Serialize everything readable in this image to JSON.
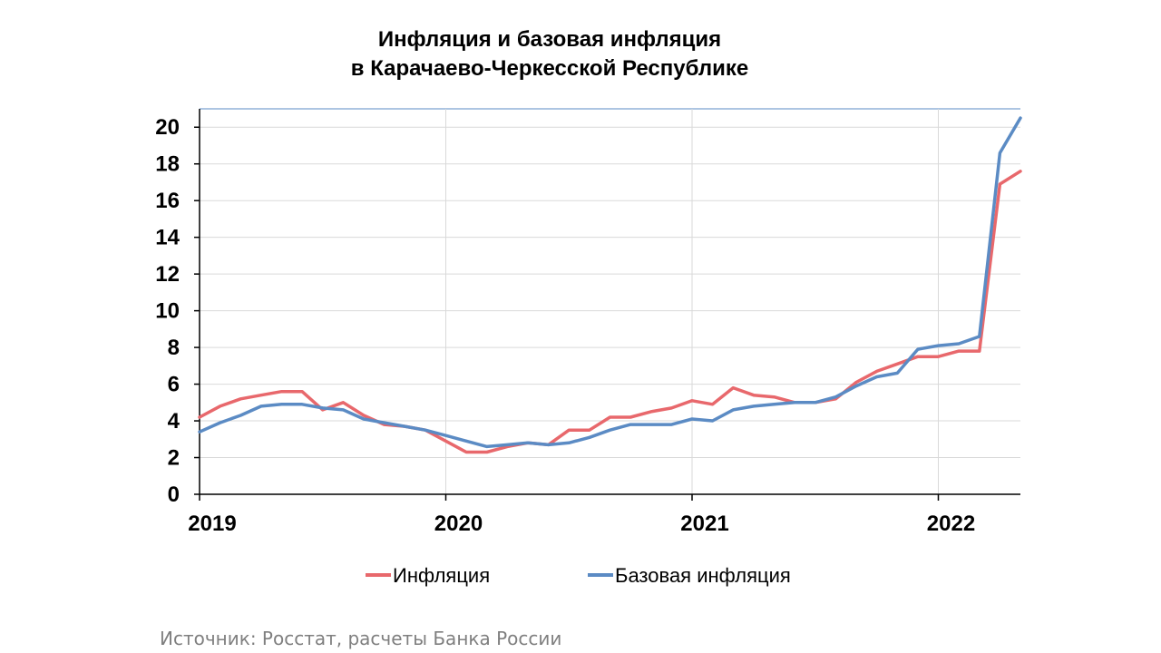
{
  "chart_data": {
    "type": "line",
    "title_line1": "Инфляция и базовая инфляция",
    "title_line2": "в Карачаево-Черкесской Республике",
    "xlabel": "",
    "ylabel": "",
    "ylim": [
      0,
      21
    ],
    "yticks": [
      0,
      2,
      4,
      6,
      8,
      10,
      12,
      14,
      16,
      18,
      20
    ],
    "year_labels": [
      "2019",
      "2020",
      "2021",
      "2022"
    ],
    "x_start": "2019-01",
    "grid": true,
    "legend_position": "bottom",
    "series": [
      {
        "name": "Инфляция",
        "color": "#e8686c",
        "values": [
          4.2,
          4.8,
          5.2,
          5.4,
          5.6,
          5.6,
          4.6,
          5.0,
          4.3,
          3.8,
          3.7,
          3.5,
          2.9,
          2.3,
          2.3,
          2.6,
          2.8,
          2.7,
          3.5,
          3.5,
          4.2,
          4.2,
          4.5,
          4.7,
          5.1,
          4.9,
          5.8,
          5.4,
          5.3,
          5.0,
          5.0,
          5.2,
          6.1,
          6.7,
          7.1,
          7.5,
          7.5,
          7.8,
          7.8,
          16.9,
          17.6
        ]
      },
      {
        "name": "Базовая инфляция",
        "color": "#5b8bc4",
        "values": [
          3.4,
          3.9,
          4.3,
          4.8,
          4.9,
          4.9,
          4.7,
          4.6,
          4.1,
          3.9,
          3.7,
          3.5,
          3.2,
          2.9,
          2.6,
          2.7,
          2.8,
          2.7,
          2.8,
          3.1,
          3.5,
          3.8,
          3.8,
          3.8,
          4.1,
          4.0,
          4.6,
          4.8,
          4.9,
          5.0,
          5.0,
          5.3,
          5.9,
          6.4,
          6.6,
          7.9,
          8.1,
          8.2,
          8.6,
          18.6,
          20.5
        ]
      }
    ]
  },
  "source_text": "Источник: Росстат, расчеты Банка России"
}
